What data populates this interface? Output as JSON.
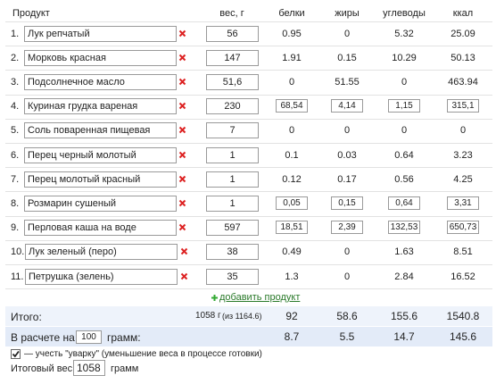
{
  "table": {
    "header": [
      "Продукт",
      "вес, г",
      "белки",
      "жиры",
      "углеводы",
      "ккал"
    ],
    "rows": [
      {
        "num": "1.",
        "name": "Лук репчатый",
        "weight": "56",
        "protein": "0.95",
        "fat": "0",
        "carbs": "5.32",
        "kcal": "25.09",
        "boxed": false
      },
      {
        "num": "2.",
        "name": "Морковь красная",
        "weight": "147",
        "protein": "1.91",
        "fat": "0.15",
        "carbs": "10.29",
        "kcal": "50.13",
        "boxed": false
      },
      {
        "num": "3.",
        "name": "Подсолнечное масло",
        "weight": "51,6",
        "protein": "0",
        "fat": "51.55",
        "carbs": "0",
        "kcal": "463.94",
        "boxed": false
      },
      {
        "num": "4.",
        "name": "Куриная грудка вареная",
        "weight": "230",
        "protein": "68,54",
        "fat": "4,14",
        "carbs": "1,15",
        "kcal": "315,1",
        "boxed": true
      },
      {
        "num": "5.",
        "name": "Соль поваренная пищевая",
        "weight": "7",
        "protein": "0",
        "fat": "0",
        "carbs": "0",
        "kcal": "0",
        "boxed": false
      },
      {
        "num": "6.",
        "name": "Перец черный молотый",
        "weight": "1",
        "protein": "0.1",
        "fat": "0.03",
        "carbs": "0.64",
        "kcal": "3.23",
        "boxed": false
      },
      {
        "num": "7.",
        "name": "Перец молотый красный",
        "weight": "1",
        "protein": "0.12",
        "fat": "0.17",
        "carbs": "0.56",
        "kcal": "4.25",
        "boxed": false
      },
      {
        "num": "8.",
        "name": "Розмарин сушеный",
        "weight": "1",
        "protein": "0,05",
        "fat": "0,15",
        "carbs": "0,64",
        "kcal": "3,31",
        "boxed": true
      },
      {
        "num": "9.",
        "name": "Перловая каша на воде",
        "weight": "597",
        "protein": "18,51",
        "fat": "2,39",
        "carbs": "132,53",
        "kcal": "650,73",
        "boxed": true
      },
      {
        "num": "10.",
        "name": "Лук зеленый (перо)",
        "weight": "38",
        "protein": "0.49",
        "fat": "0",
        "carbs": "1.63",
        "kcal": "8.51",
        "boxed": false
      },
      {
        "num": "11.",
        "name": "Петрушка (зелень)",
        "weight": "35",
        "protein": "1.3",
        "fat": "0",
        "carbs": "2.84",
        "kcal": "16.52",
        "boxed": false
      }
    ]
  },
  "add_link": "добавить продукт",
  "totals": {
    "label": "Итого:",
    "weight": "1058 г",
    "weight_of": "(из 1164.6)",
    "protein": "92",
    "fat": "58.6",
    "carbs": "155.6",
    "kcal": "1540.8"
  },
  "per": {
    "label_before": "В расчете на",
    "amount": "100",
    "label_after": "грамм:",
    "protein": "8.7",
    "fat": "5.5",
    "carbs": "14.7",
    "kcal": "145.6"
  },
  "options": {
    "checkbox_checked": true,
    "checkbox_label": "— учесть \"уварку\" (уменьшение веса в процессе готовки)",
    "final_weight_label": "Итоговый вес:",
    "final_weight": "1058",
    "final_weight_unit": "грамм"
  }
}
